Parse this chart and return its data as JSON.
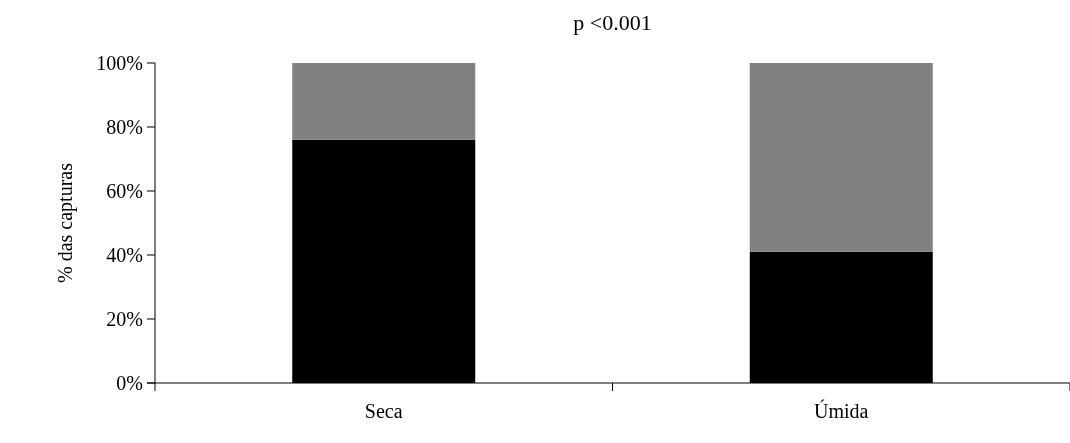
{
  "chart_data": {
    "type": "bar",
    "title": "p <0.001",
    "ylabel": "% das capturas",
    "categories": [
      "Seca",
      "Úmida"
    ],
    "stacked": true,
    "series": [
      {
        "color": "#000000",
        "values": [
          76,
          41
        ]
      },
      {
        "color": "#808080",
        "values": [
          24,
          59
        ]
      }
    ],
    "ylim": [
      0,
      100
    ],
    "yticks": [
      {
        "value": 0,
        "label": "0%"
      },
      {
        "value": 20,
        "label": "20%"
      },
      {
        "value": 40,
        "label": "40%"
      },
      {
        "value": 60,
        "label": "60%"
      },
      {
        "value": 80,
        "label": "80%"
      },
      {
        "value": 100,
        "label": "100%"
      }
    ],
    "grid": false
  }
}
